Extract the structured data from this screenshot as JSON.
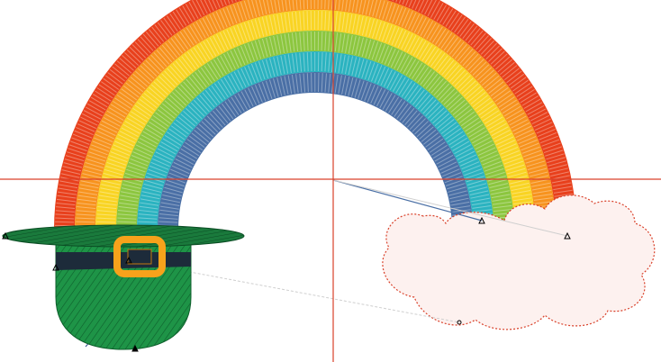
{
  "canvas": {
    "background": "#ffffff",
    "guide_color": "#d9412a",
    "travel_line_color": "#4a6fa5",
    "connector_color": "#bdbdbd"
  },
  "rainbow": {
    "bands": [
      {
        "name": "red",
        "color": "#e8401c"
      },
      {
        "name": "orange",
        "color": "#f7931e"
      },
      {
        "name": "yellow",
        "color": "#f9d423"
      },
      {
        "name": "green",
        "color": "#8cc63f"
      },
      {
        "name": "teal",
        "color": "#2bb3c0"
      },
      {
        "name": "blue",
        "color": "#4a6fa5"
      }
    ]
  },
  "cloud": {
    "fill": "#fdf1ef",
    "outline": "#d9412a"
  },
  "hat": {
    "crown_color": "#1e9447",
    "brim_color": "#1a7a3c",
    "band_color": "#1d2b3a",
    "buckle_color": "#f7a21b"
  },
  "icons": {
    "node_marker": "triangle-node-icon",
    "anchor_marker": "circle-node-icon"
  }
}
